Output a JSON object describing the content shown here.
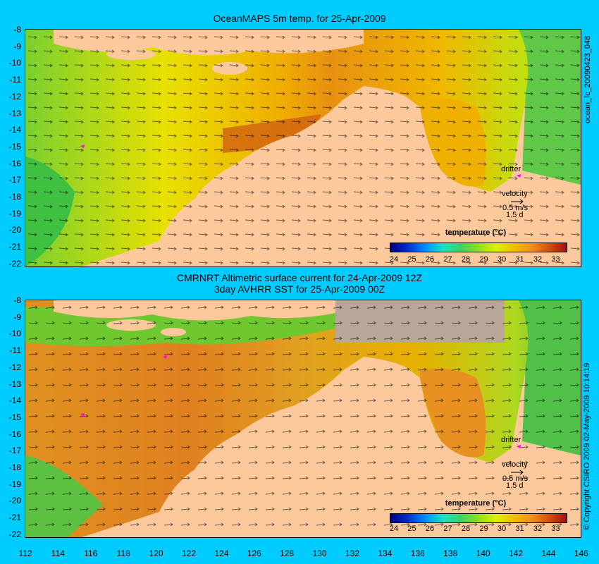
{
  "panels": [
    {
      "title_lines": [
        "OceanMAPS 5m temp. for 25-Apr-2009"
      ],
      "colorbar_title": "temperature (°C)",
      "legend": {
        "drifter": "drifter",
        "velocity": "velocity",
        "speed": "0.5 m/s",
        "duration": "1.5 d"
      }
    },
    {
      "title_lines": [
        "CMRNRT Altimetric surface current for 24-Apr-2009 12Z",
        "3day AVHRR SST for 25-Apr-2009 00Z"
      ],
      "colorbar_title": "temperature (°C)",
      "legend": {
        "drifter": "drifter",
        "velocity": "velocity",
        "speed": "0.5 m/s",
        "duration": "1.5 d"
      }
    }
  ],
  "y_ticks": [
    "-8",
    "-9",
    "-10",
    "-11",
    "-12",
    "-13",
    "-14",
    "-15",
    "-16",
    "-17",
    "-18",
    "-19",
    "-20",
    "-21",
    "-22"
  ],
  "x_ticks": [
    "112",
    "114",
    "116",
    "118",
    "120",
    "122",
    "124",
    "126",
    "128",
    "130",
    "132",
    "134",
    "136",
    "138",
    "140",
    "142",
    "144",
    "146"
  ],
  "colorbar_ticks": [
    "24",
    "25",
    "26",
    "27",
    "28",
    "29",
    "30",
    "31",
    "32",
    "33"
  ],
  "colorbar_colors": [
    "#00007f",
    "#0030c8",
    "#0090ff",
    "#20e0c0",
    "#40d060",
    "#90e020",
    "#e0f000",
    "#f0c000",
    "#f09020",
    "#d05010",
    "#a01010"
  ],
  "side_label_top": "ocean_fc_20090423_048",
  "side_label_bottom": "© Copyright CSIRO 2009    02-May-2009 10:14:19",
  "colors": {
    "frame": "#00ccff",
    "land": "#fcc99c",
    "contour": "#40e0e0",
    "drifter": "#ff00ff",
    "cloud": "#b8a698"
  }
}
